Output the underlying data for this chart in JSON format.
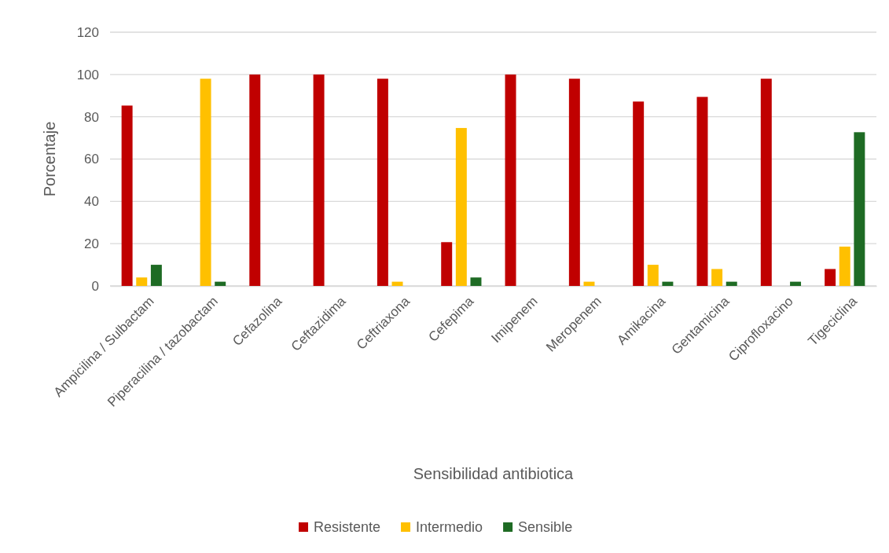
{
  "chart_data": {
    "type": "bar",
    "xlabel": "Sensibilidad antibiotica",
    "ylabel": "Porcentaje",
    "categories": [
      "Ampicilina / Sulbactam",
      "Piperacilina / tazobactam",
      "Cefazolina",
      "Ceftazidima",
      "Ceftriaxona",
      "Cefepima",
      "Imipenem",
      "Meropenem",
      "Amikacina",
      "Gentamicina",
      "Ciprofloxacino",
      "Tigeciclina"
    ],
    "series": [
      {
        "name": "Resistente",
        "color": "#c00000",
        "values": [
          85.3,
          0,
          100,
          100,
          98,
          20.7,
          100,
          98,
          87.2,
          89.4,
          98,
          8
        ]
      },
      {
        "name": "Intermedio",
        "color": "#ffc000",
        "values": [
          4,
          98,
          0,
          0,
          2,
          74.7,
          0,
          2,
          10,
          8,
          0,
          18.6
        ]
      },
      {
        "name": "Sensible",
        "color": "#1e6b24",
        "values": [
          10,
          2,
          0,
          0,
          0,
          4,
          0,
          0,
          2,
          2,
          2,
          72.7
        ]
      }
    ],
    "ylim": [
      0,
      120
    ],
    "yticks": [
      0,
      20,
      40,
      60,
      80,
      100,
      120
    ],
    "grid": "y",
    "legend": "bottom"
  }
}
